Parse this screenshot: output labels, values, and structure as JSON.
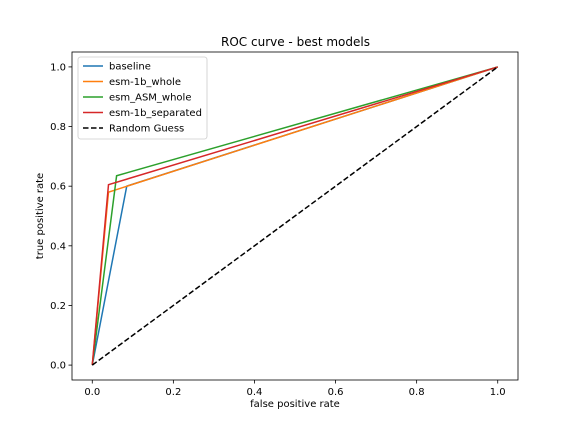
{
  "chart_data": {
    "type": "line",
    "title": "ROC curve - best models",
    "xlabel": "false positive rate",
    "ylabel": "true positive rate",
    "xlim": [
      -0.05,
      1.05
    ],
    "ylim": [
      -0.05,
      1.05
    ],
    "xticks": [
      0.0,
      0.2,
      0.4,
      0.6,
      0.8,
      1.0
    ],
    "yticks": [
      0.0,
      0.2,
      0.4,
      0.6,
      0.8,
      1.0
    ],
    "xtick_labels": [
      "0.0",
      "0.2",
      "0.4",
      "0.6",
      "0.8",
      "1.0"
    ],
    "ytick_labels": [
      "0.0",
      "0.2",
      "0.4",
      "0.6",
      "0.8",
      "1.0"
    ],
    "grid": false,
    "legend_position": "top-left",
    "series": [
      {
        "name": "baseline",
        "color": "#1f77b4",
        "dash": "solid",
        "x": [
          0.0,
          0.085,
          1.0
        ],
        "y": [
          0.0,
          0.6,
          1.0
        ]
      },
      {
        "name": "esm-1b_whole",
        "color": "#ff7f0e",
        "dash": "solid",
        "x": [
          0.0,
          0.04,
          1.0
        ],
        "y": [
          0.0,
          0.58,
          1.0
        ]
      },
      {
        "name": "esm_ASM_whole",
        "color": "#2ca02c",
        "dash": "solid",
        "x": [
          0.0,
          0.06,
          1.0
        ],
        "y": [
          0.0,
          0.635,
          1.0
        ]
      },
      {
        "name": "esm-1b_separated",
        "color": "#d62728",
        "dash": "solid",
        "x": [
          0.0,
          0.04,
          1.0
        ],
        "y": [
          0.0,
          0.605,
          1.0
        ]
      },
      {
        "name": "Random Guess",
        "color": "#000000",
        "dash": "dashed",
        "x": [
          0.0,
          1.0
        ],
        "y": [
          0.0,
          1.0
        ]
      }
    ]
  }
}
